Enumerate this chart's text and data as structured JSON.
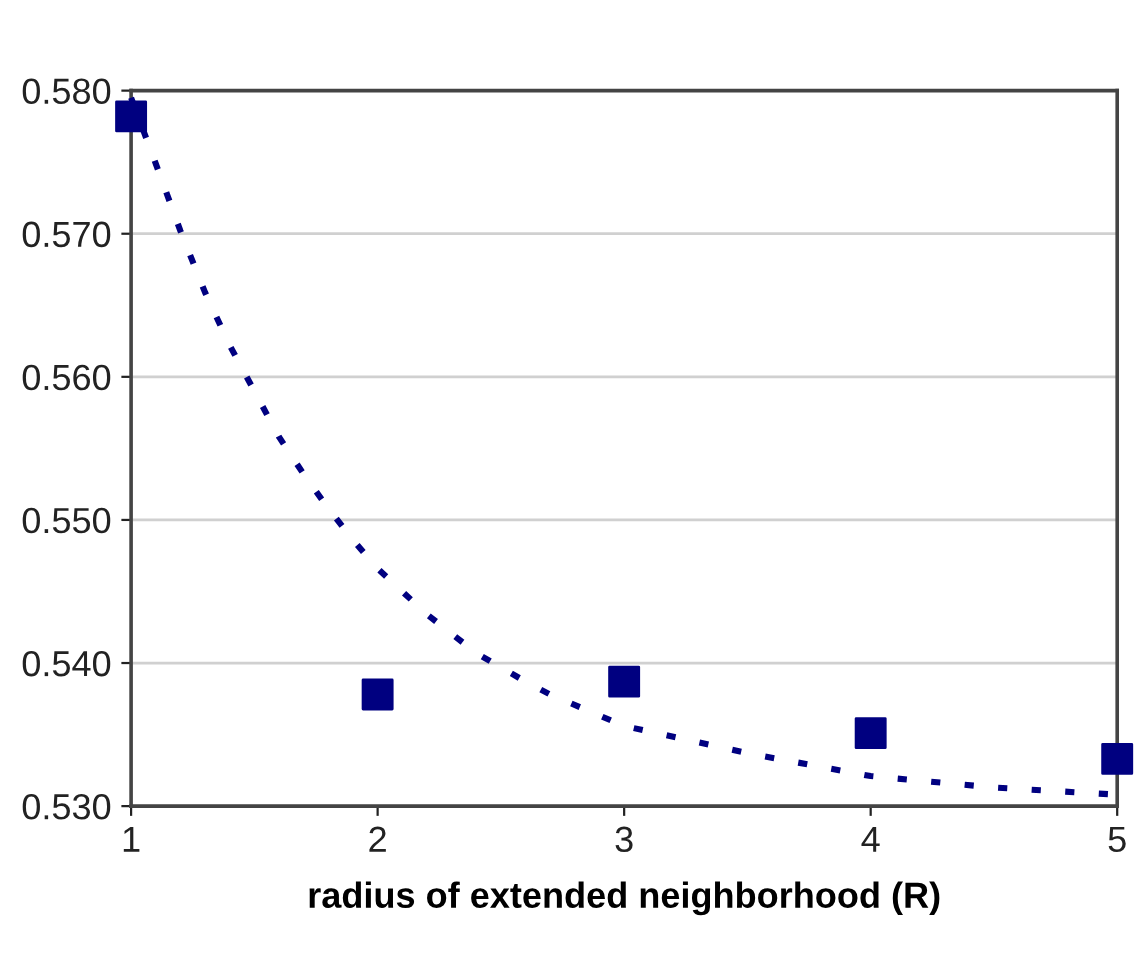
{
  "chart_data": {
    "type": "scatter",
    "xlabel": "radius of extended neighborhood (R)",
    "xlim": [
      1,
      5
    ],
    "xticks": [
      1,
      2,
      3,
      4,
      5
    ],
    "ylim": [
      0.53,
      0.58
    ],
    "yticks": [
      {
        "value": 0.53,
        "label": "0.530"
      },
      {
        "value": 0.54,
        "label": "0.540"
      },
      {
        "value": 0.55,
        "label": "0.550"
      },
      {
        "value": 0.56,
        "label": "0.560"
      },
      {
        "value": 0.57,
        "label": "0.570"
      },
      {
        "value": 0.58,
        "label": "0.580"
      }
    ],
    "grid": "y",
    "legend": false,
    "series": [
      {
        "color": "#000080",
        "marker": "square",
        "x": [
          1,
          2,
          3,
          4,
          5
        ],
        "values": [
          0.5782,
          0.5378,
          0.5387,
          0.5351,
          0.5333
        ]
      },
      {
        "type": "line",
        "color": "#000080",
        "line_style": "dashed",
        "marker": "none",
        "x": [
          1,
          1.1,
          1.2,
          1.3,
          1.4,
          1.5,
          1.6,
          1.7,
          1.8,
          1.9,
          2,
          2.2,
          2.4,
          2.6,
          2.7,
          3,
          3.5,
          4,
          4.5,
          5
        ],
        "values": [
          0.5795,
          0.5749,
          0.5702,
          0.5659,
          0.5622,
          0.559,
          0.5558,
          0.5532,
          0.5508,
          0.5486,
          0.5466,
          0.5434,
          0.5407,
          0.5387,
          0.5378,
          0.5356,
          0.5337,
          0.5321,
          0.5313,
          0.5308
        ]
      }
    ]
  }
}
